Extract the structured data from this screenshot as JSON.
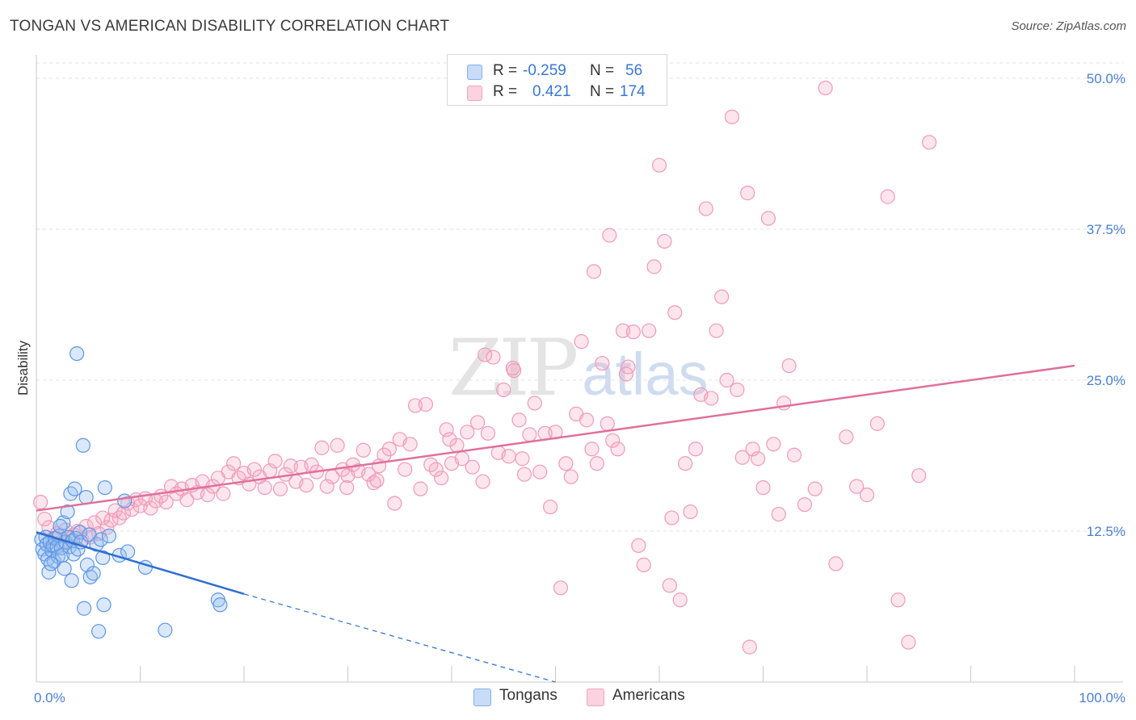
{
  "title": "TONGAN VS AMERICAN DISABILITY CORRELATION CHART",
  "source": "Source: ZipAtlas.com",
  "watermark": {
    "zip": "ZIP",
    "atlas": "atlas"
  },
  "legend": {
    "rows": [
      {
        "r_label": "R =",
        "r_value": "-0.259",
        "n_label": "N =",
        "n_value": "56",
        "color": "#7fb0ee"
      },
      {
        "r_label": "R =",
        "r_value": "0.421",
        "n_label": "N =",
        "n_value": "174",
        "color": "#f3a3bf"
      }
    ]
  },
  "bottom_legend": [
    {
      "label": "Tongans",
      "color": "#7fb0ee"
    },
    {
      "label": "Americans",
      "color": "#f3a3bf"
    }
  ],
  "chart_data": {
    "type": "scatter",
    "title": "TONGAN VS AMERICAN DISABILITY CORRELATION CHART",
    "xlabel": "",
    "ylabel": "Disability",
    "xlim": [
      0,
      100
    ],
    "ylim": [
      0,
      50
    ],
    "x_tick_labels": [
      "0.0%",
      "100.0%"
    ],
    "y_ticks": [
      12.5,
      25,
      37.5,
      50
    ],
    "y_tick_labels": [
      "12.5%",
      "25.0%",
      "37.5%",
      "50.0%"
    ],
    "grid": true,
    "legend_position": "top-center",
    "series": [
      {
        "name": "Tongans",
        "color": "#6aa3ea",
        "line_color": "#2f6fd0",
        "trend": {
          "x0": 0,
          "y0": 12.4,
          "x1": 20,
          "y1": 7.3,
          "dashed_to_x": 50,
          "dashed_to_y": 0
        },
        "points": [
          [
            0.5,
            11.8
          ],
          [
            0.6,
            11.0
          ],
          [
            0.8,
            10.6
          ],
          [
            0.9,
            12.0
          ],
          [
            1.0,
            11.4
          ],
          [
            1.1,
            10.2
          ],
          [
            1.2,
            9.1
          ],
          [
            1.3,
            11.6
          ],
          [
            1.5,
            10.9
          ],
          [
            1.6,
            11.3
          ],
          [
            1.7,
            10.0
          ],
          [
            1.8,
            11.9
          ],
          [
            2.0,
            11.2
          ],
          [
            2.1,
            10.4
          ],
          [
            2.2,
            12.1
          ],
          [
            2.4,
            11.1
          ],
          [
            2.5,
            10.5
          ],
          [
            2.6,
            13.2
          ],
          [
            2.7,
            9.4
          ],
          [
            2.8,
            11.6
          ],
          [
            3.0,
            14.1
          ],
          [
            3.1,
            12.0
          ],
          [
            3.2,
            11.2
          ],
          [
            3.3,
            15.6
          ],
          [
            3.4,
            8.4
          ],
          [
            3.5,
            11.7
          ],
          [
            3.6,
            10.6
          ],
          [
            3.7,
            16.0
          ],
          [
            3.8,
            11.9
          ],
          [
            4.0,
            11.0
          ],
          [
            4.2,
            12.4
          ],
          [
            4.3,
            11.6
          ],
          [
            4.5,
            19.6
          ],
          [
            4.6,
            6.1
          ],
          [
            4.8,
            15.3
          ],
          [
            4.9,
            9.7
          ],
          [
            5.1,
            12.2
          ],
          [
            5.2,
            8.7
          ],
          [
            5.5,
            9.0
          ],
          [
            5.8,
            11.4
          ],
          [
            6.0,
            4.2
          ],
          [
            6.2,
            11.8
          ],
          [
            6.4,
            10.3
          ],
          [
            6.5,
            6.4
          ],
          [
            6.6,
            16.1
          ],
          [
            7.0,
            12.1
          ],
          [
            8.0,
            10.5
          ],
          [
            8.5,
            15.0
          ],
          [
            8.8,
            10.8
          ],
          [
            10.5,
            9.5
          ],
          [
            12.4,
            4.3
          ],
          [
            17.5,
            6.8
          ],
          [
            17.7,
            6.4
          ],
          [
            3.9,
            27.2
          ],
          [
            1.4,
            9.8
          ],
          [
            2.3,
            12.9
          ]
        ]
      },
      {
        "name": "Americans",
        "color": "#f3a3bf",
        "line_color": "#e0709a",
        "trend": {
          "x0": 0,
          "y0": 14.2,
          "x1": 100,
          "y1": 26.2
        },
        "points": [
          [
            0.4,
            14.9
          ],
          [
            0.8,
            13.5
          ],
          [
            1.2,
            12.8
          ],
          [
            1.6,
            11.9
          ],
          [
            2.0,
            12.3
          ],
          [
            2.4,
            11.6
          ],
          [
            2.8,
            12.6
          ],
          [
            3.2,
            11.9
          ],
          [
            3.6,
            12.2
          ],
          [
            4.0,
            12.5
          ],
          [
            4.4,
            11.8
          ],
          [
            4.8,
            12.9
          ],
          [
            5.2,
            12.0
          ],
          [
            5.6,
            13.2
          ],
          [
            6.0,
            12.3
          ],
          [
            6.4,
            13.6
          ],
          [
            6.8,
            12.8
          ],
          [
            7.2,
            13.4
          ],
          [
            7.6,
            14.2
          ],
          [
            8.0,
            13.6
          ],
          [
            8.4,
            14.0
          ],
          [
            8.8,
            14.8
          ],
          [
            9.2,
            14.3
          ],
          [
            9.6,
            15.1
          ],
          [
            10.0,
            14.6
          ],
          [
            10.5,
            15.2
          ],
          [
            11.0,
            14.4
          ],
          [
            11.5,
            15.0
          ],
          [
            12.0,
            15.4
          ],
          [
            12.5,
            14.9
          ],
          [
            13.0,
            16.2
          ],
          [
            13.5,
            15.6
          ],
          [
            14.0,
            16.0
          ],
          [
            14.5,
            15.1
          ],
          [
            15.0,
            16.3
          ],
          [
            15.5,
            15.7
          ],
          [
            16.0,
            16.6
          ],
          [
            16.5,
            15.5
          ],
          [
            17.0,
            16.2
          ],
          [
            17.5,
            16.9
          ],
          [
            18.0,
            15.6
          ],
          [
            18.5,
            17.4
          ],
          [
            19.0,
            18.1
          ],
          [
            19.5,
            16.9
          ],
          [
            20.0,
            17.3
          ],
          [
            20.5,
            16.4
          ],
          [
            21.0,
            17.6
          ],
          [
            21.5,
            17.0
          ],
          [
            22.0,
            16.1
          ],
          [
            22.5,
            17.5
          ],
          [
            23.0,
            18.3
          ],
          [
            23.5,
            16.0
          ],
          [
            24.0,
            17.2
          ],
          [
            24.5,
            17.9
          ],
          [
            25.0,
            16.6
          ],
          [
            25.5,
            17.8
          ],
          [
            26.0,
            16.3
          ],
          [
            26.5,
            18.0
          ],
          [
            27.0,
            17.4
          ],
          [
            27.5,
            19.4
          ],
          [
            28.0,
            16.2
          ],
          [
            28.5,
            17.0
          ],
          [
            29.0,
            19.6
          ],
          [
            29.5,
            17.6
          ],
          [
            30.0,
            17.1
          ],
          [
            30.5,
            18.0
          ],
          [
            31.0,
            17.5
          ],
          [
            31.5,
            19.2
          ],
          [
            32.0,
            17.2
          ],
          [
            32.5,
            16.5
          ],
          [
            33.0,
            17.9
          ],
          [
            33.5,
            18.8
          ],
          [
            34.0,
            19.3
          ],
          [
            34.5,
            14.8
          ],
          [
            35.0,
            20.1
          ],
          [
            35.5,
            17.6
          ],
          [
            36.0,
            19.7
          ],
          [
            36.5,
            22.9
          ],
          [
            37.0,
            16.0
          ],
          [
            37.5,
            23.0
          ],
          [
            38.0,
            18.0
          ],
          [
            38.5,
            17.6
          ],
          [
            39.0,
            16.9
          ],
          [
            39.5,
            20.9
          ],
          [
            40.0,
            18.1
          ],
          [
            40.5,
            19.6
          ],
          [
            41.0,
            18.5
          ],
          [
            41.5,
            20.7
          ],
          [
            42.0,
            17.8
          ],
          [
            42.5,
            21.5
          ],
          [
            43.0,
            16.6
          ],
          [
            43.5,
            20.6
          ],
          [
            44.0,
            26.9
          ],
          [
            44.5,
            19.0
          ],
          [
            45.0,
            24.2
          ],
          [
            45.5,
            18.7
          ],
          [
            46.0,
            25.8
          ],
          [
            46.5,
            21.7
          ],
          [
            47.0,
            17.2
          ],
          [
            47.5,
            20.5
          ],
          [
            48.0,
            23.1
          ],
          [
            48.5,
            17.4
          ],
          [
            49.0,
            20.6
          ],
          [
            49.5,
            14.5
          ],
          [
            50.0,
            20.7
          ],
          [
            50.5,
            7.8
          ],
          [
            51.0,
            18.1
          ],
          [
            51.5,
            17.0
          ],
          [
            52.0,
            22.2
          ],
          [
            52.5,
            28.2
          ],
          [
            53.0,
            21.7
          ],
          [
            53.5,
            19.3
          ],
          [
            54.0,
            18.1
          ],
          [
            54.5,
            26.4
          ],
          [
            55.0,
            21.4
          ],
          [
            55.5,
            20.0
          ],
          [
            56.0,
            19.3
          ],
          [
            56.5,
            29.1
          ],
          [
            57.0,
            26.1
          ],
          [
            57.5,
            29.0
          ],
          [
            58.0,
            11.3
          ],
          [
            58.5,
            9.7
          ],
          [
            59.0,
            29.1
          ],
          [
            59.5,
            34.4
          ],
          [
            60.0,
            42.8
          ],
          [
            60.5,
            36.5
          ],
          [
            61.0,
            8.0
          ],
          [
            61.5,
            30.6
          ],
          [
            62.0,
            6.8
          ],
          [
            62.5,
            18.1
          ],
          [
            63.0,
            14.1
          ],
          [
            63.5,
            19.3
          ],
          [
            64.0,
            23.8
          ],
          [
            64.5,
            39.2
          ],
          [
            65.0,
            23.5
          ],
          [
            65.5,
            29.1
          ],
          [
            66.0,
            31.9
          ],
          [
            66.5,
            25.0
          ],
          [
            67.0,
            46.8
          ],
          [
            67.5,
            24.2
          ],
          [
            68.0,
            18.6
          ],
          [
            68.5,
            40.5
          ],
          [
            69.0,
            19.3
          ],
          [
            69.5,
            18.5
          ],
          [
            70.0,
            16.1
          ],
          [
            70.5,
            38.4
          ],
          [
            71.0,
            19.7
          ],
          [
            71.5,
            13.9
          ],
          [
            72.0,
            23.1
          ],
          [
            72.5,
            26.2
          ],
          [
            73.0,
            18.8
          ],
          [
            74.0,
            14.7
          ],
          [
            75.0,
            16.0
          ],
          [
            76.0,
            49.2
          ],
          [
            77.0,
            9.8
          ],
          [
            78.0,
            20.3
          ],
          [
            79.0,
            16.2
          ],
          [
            80.0,
            15.5
          ],
          [
            81.0,
            21.4
          ],
          [
            82.0,
            40.2
          ],
          [
            83.0,
            6.8
          ],
          [
            84.0,
            3.3
          ],
          [
            85.0,
            17.1
          ],
          [
            86.0,
            44.7
          ],
          [
            68.7,
            2.9
          ],
          [
            53.7,
            34.0
          ],
          [
            45.9,
            26.0
          ],
          [
            43.2,
            27.1
          ],
          [
            39.8,
            20.1
          ],
          [
            46.8,
            18.5
          ],
          [
            55.2,
            37.0
          ],
          [
            32.8,
            16.7
          ],
          [
            29.9,
            16.1
          ],
          [
            56.8,
            25.5
          ],
          [
            61.2,
            13.6
          ]
        ]
      }
    ]
  }
}
